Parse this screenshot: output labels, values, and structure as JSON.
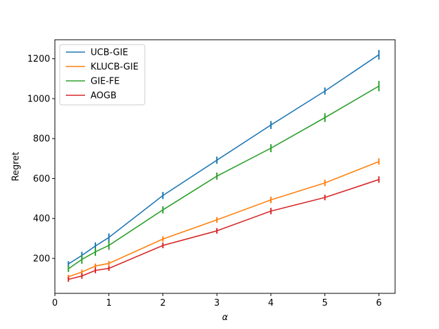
{
  "chart_data": {
    "type": "line",
    "title": "",
    "xlabel": "α",
    "ylabel": "Regret",
    "x": [
      0.25,
      0.5,
      0.75,
      1,
      2,
      3,
      4,
      5,
      6
    ],
    "xlim": [
      0,
      6.3
    ],
    "ylim": [
      25,
      1295
    ],
    "xticks": [
      0,
      1,
      2,
      3,
      4,
      5,
      6
    ],
    "yticks": [
      200,
      400,
      600,
      800,
      1000,
      1200
    ],
    "grid": false,
    "legend_position": "top-left",
    "series": [
      {
        "name": "UCB-GIE",
        "color": "#1f77b4",
        "values": [
          172,
          215,
          262,
          305,
          515,
          692,
          868,
          1038,
          1220
        ],
        "errors": [
          14,
          18,
          18,
          20,
          18,
          18,
          20,
          18,
          24
        ]
      },
      {
        "name": "KLUCB-GIE",
        "color": "#ff7f0e",
        "values": [
          108,
          132,
          162,
          175,
          297,
          393,
          493,
          578,
          685
        ],
        "errors": [
          10,
          12,
          12,
          12,
          14,
          14,
          16,
          16,
          16
        ]
      },
      {
        "name": "GIE-FE",
        "color": "#2ca02c",
        "values": [
          148,
          195,
          233,
          265,
          443,
          612,
          752,
          905,
          1063
        ],
        "errors": [
          16,
          22,
          20,
          22,
          18,
          18,
          20,
          22,
          26
        ]
      },
      {
        "name": "AOGB",
        "color": "#d62728",
        "values": [
          95,
          112,
          140,
          150,
          265,
          338,
          437,
          505,
          595
        ],
        "errors": [
          12,
          14,
          14,
          12,
          14,
          14,
          16,
          14,
          16
        ]
      }
    ]
  }
}
